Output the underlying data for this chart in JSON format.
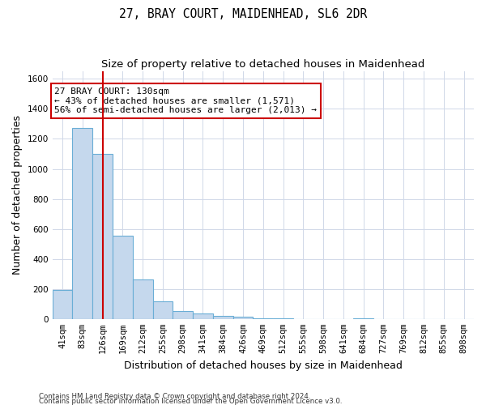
{
  "title": "27, BRAY COURT, MAIDENHEAD, SL6 2DR",
  "subtitle": "Size of property relative to detached houses in Maidenhead",
  "xlabel": "Distribution of detached houses by size in Maidenhead",
  "ylabel": "Number of detached properties",
  "footer_line1": "Contains HM Land Registry data © Crown copyright and database right 2024.",
  "footer_line2": "Contains public sector information licensed under the Open Government Licence v3.0.",
  "bin_labels": [
    "41sqm",
    "83sqm",
    "126sqm",
    "169sqm",
    "212sqm",
    "255sqm",
    "298sqm",
    "341sqm",
    "384sqm",
    "426sqm",
    "469sqm",
    "512sqm",
    "555sqm",
    "598sqm",
    "641sqm",
    "684sqm",
    "727sqm",
    "769sqm",
    "812sqm",
    "855sqm",
    "898sqm"
  ],
  "bar_values": [
    195,
    1270,
    1100,
    555,
    265,
    120,
    55,
    35,
    20,
    15,
    5,
    5,
    0,
    0,
    0,
    5,
    0,
    0,
    0,
    0,
    0
  ],
  "bar_color": "#c5d8ed",
  "bar_edge_color": "#6aaed6",
  "vline_position": 2.0,
  "vline_color": "#cc0000",
  "annotation_line1": "27 BRAY COURT: 130sqm",
  "annotation_line2": "← 43% of detached houses are smaller (1,571)",
  "annotation_line3": "56% of semi-detached houses are larger (2,013) →",
  "ylim": [
    0,
    1650
  ],
  "yticks": [
    0,
    200,
    400,
    600,
    800,
    1000,
    1200,
    1400,
    1600
  ],
  "grid_color": "#d0d8e8",
  "title_fontsize": 10.5,
  "subtitle_fontsize": 9.5,
  "axis_label_fontsize": 9,
  "tick_fontsize": 7.5,
  "annotation_fontsize": 8,
  "footer_fontsize": 6.2
}
